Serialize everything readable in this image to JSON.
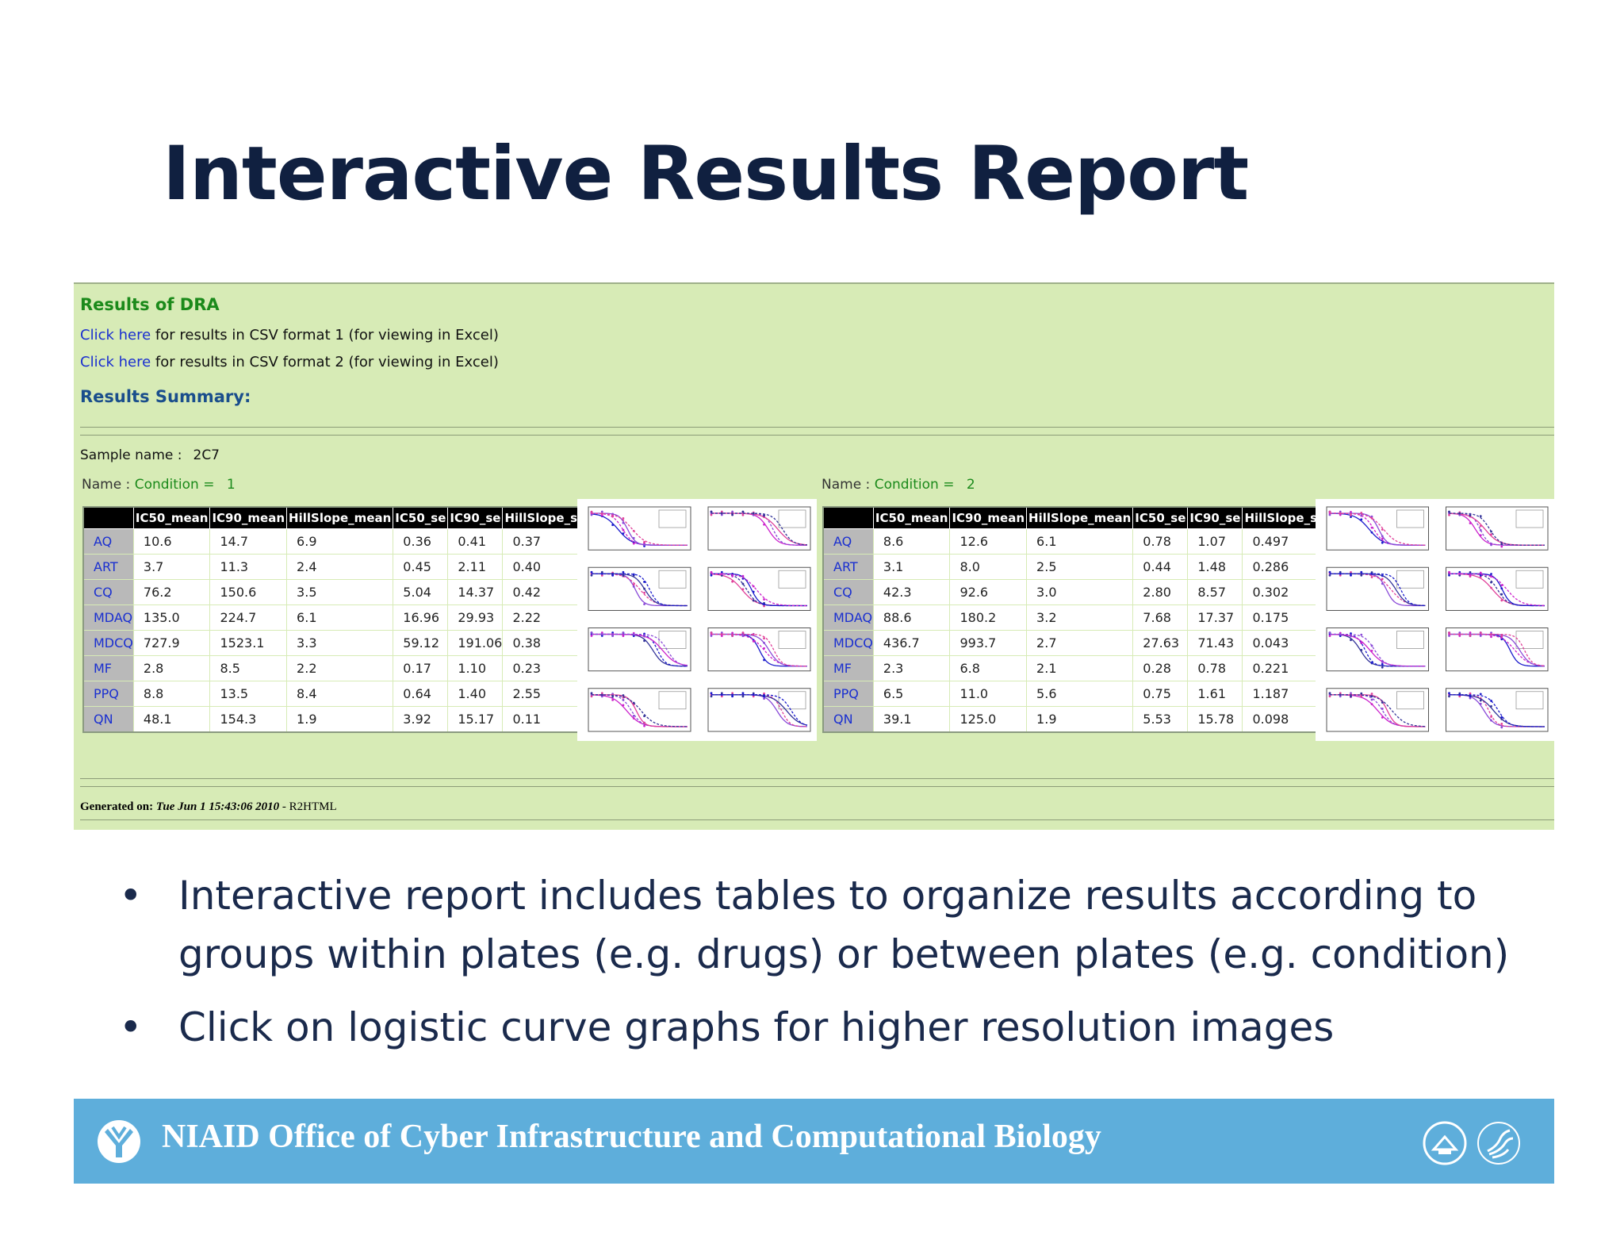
{
  "slide": {
    "title": "Interactive Results Report"
  },
  "report": {
    "heading": "Results of DRA",
    "links": [
      {
        "link_text": "Click here",
        "rest": " for results in CSV format 1 (for viewing in Excel)"
      },
      {
        "link_text": "Click here",
        "rest": " for results in CSV format 2 (for viewing in Excel)"
      }
    ],
    "summary_heading": "Results Summary:",
    "sample_label": "Sample name :",
    "sample_value": "2C7",
    "columns": [
      "",
      "IC50_mean",
      "IC90_mean",
      "HillSlope_mean",
      "IC50_se",
      "IC90_se",
      "HillSlope_se"
    ],
    "tables": [
      {
        "name_label": "Name :",
        "condition_label": "Condition =",
        "condition_value": "1",
        "rows": [
          [
            "AQ",
            "10.6",
            "14.7",
            "6.9",
            "0.36",
            "0.41",
            "0.37"
          ],
          [
            "ART",
            "3.7",
            "11.3",
            "2.4",
            "0.45",
            "2.11",
            "0.40"
          ],
          [
            "CQ",
            "76.2",
            "150.6",
            "3.5",
            "5.04",
            "14.37",
            "0.42"
          ],
          [
            "MDAQ",
            "135.0",
            "224.7",
            "6.1",
            "16.96",
            "29.93",
            "2.22"
          ],
          [
            "MDCQ",
            "727.9",
            "1523.1",
            "3.3",
            "59.12",
            "191.06",
            "0.38"
          ],
          [
            "MF",
            "2.8",
            "8.5",
            "2.2",
            "0.17",
            "1.10",
            "0.23"
          ],
          [
            "PPQ",
            "8.8",
            "13.5",
            "8.4",
            "0.64",
            "1.40",
            "2.55"
          ],
          [
            "QN",
            "48.1",
            "154.3",
            "1.9",
            "3.92",
            "15.17",
            "0.11"
          ]
        ]
      },
      {
        "name_label": "Name :",
        "condition_label": "Condition =",
        "condition_value": "2",
        "rows": [
          [
            "AQ",
            "8.6",
            "12.6",
            "6.1",
            "0.78",
            "1.07",
            "0.497"
          ],
          [
            "ART",
            "3.1",
            "8.0",
            "2.5",
            "0.44",
            "1.48",
            "0.286"
          ],
          [
            "CQ",
            "42.3",
            "92.6",
            "3.0",
            "2.80",
            "8.57",
            "0.302"
          ],
          [
            "MDAQ",
            "88.6",
            "180.2",
            "3.2",
            "7.68",
            "17.37",
            "0.175"
          ],
          [
            "MDCQ",
            "436.7",
            "993.7",
            "2.7",
            "27.63",
            "71.43",
            "0.043"
          ],
          [
            "MF",
            "2.3",
            "6.8",
            "2.1",
            "0.28",
            "0.78",
            "0.221"
          ],
          [
            "PPQ",
            "6.5",
            "11.0",
            "5.6",
            "0.75",
            "1.61",
            "1.187"
          ],
          [
            "QN",
            "39.1",
            "125.0",
            "1.9",
            "5.53",
            "15.78",
            "0.098"
          ]
        ]
      }
    ],
    "generated_label": "Generated on:",
    "generated_date": "Tue Jun 1 15:43:06 2010",
    "generated_by": " - R2HTML"
  },
  "bullets": [
    "Interactive report includes tables to organize results according to groups within plates (e.g. drugs) or between plates (e.g. condition)",
    "Click on logistic curve graphs for higher resolution images"
  ],
  "bullet_glyph": "•",
  "banner": {
    "text": "NIAID Office of Cyber Infrastructure and Computational Biology"
  },
  "colors": {
    "title": "#102040",
    "panel_bg": "#d7ebb6",
    "banner_bg": "#5eaedb",
    "link": "#1a2fd0",
    "green_heading": "#1b8a1b"
  }
}
